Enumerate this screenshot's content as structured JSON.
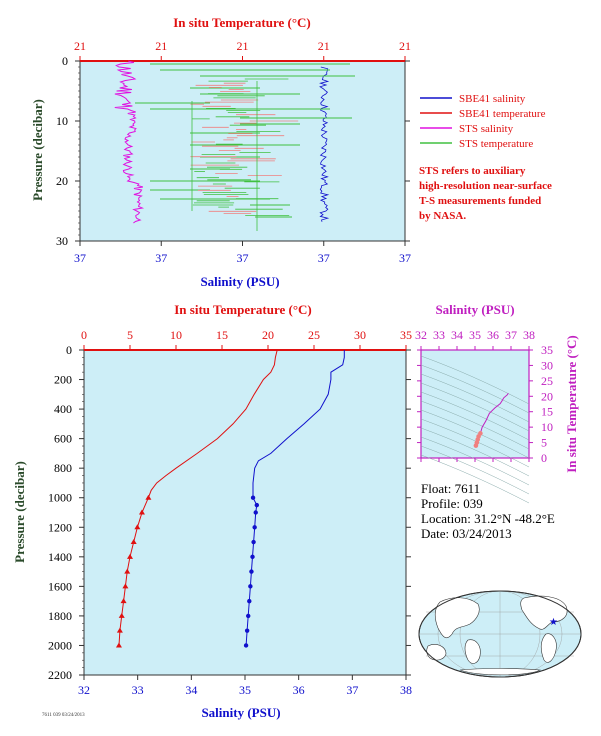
{
  "colors": {
    "panel_bg": "#cdeef7",
    "axis_dark": "#333333",
    "temp": "#e01010",
    "salinity": "#1010cc",
    "sts_salinity": "#e010e0",
    "sts_temperature": "#40c040",
    "sts_temp_fine": "#f08080",
    "ts_salinity": "#c020c0",
    "ylabel": "#2a4a2a"
  },
  "top_panel": {
    "top_axis_title": "In situ Temperature (°C)",
    "bottom_axis_title": "Salinity (PSU)",
    "y_axis_title": "Pressure (decibar)",
    "top_ticks": [
      "21",
      "21",
      "21",
      "21",
      "21"
    ],
    "bottom_ticks": [
      "37",
      "37",
      "37",
      "37",
      "37"
    ],
    "y_ticks": [
      "0",
      "10",
      "20",
      "30"
    ],
    "legend": [
      {
        "label": "SBE41 salinity",
        "color": "#1010cc"
      },
      {
        "label": "SBE41 temperature",
        "color": "#e01010"
      },
      {
        "label": "STS salinity",
        "color": "#e010e0"
      },
      {
        "label": "STS temperature",
        "color": "#40c040"
      }
    ],
    "note": [
      "STS refers to auxiliary",
      "high-resolution near-surface",
      "T-S measurements funded",
      "by NASA."
    ]
  },
  "main_panel": {
    "top_axis_title": "In situ Temperature (°C)",
    "bottom_axis_title": "Salinity (PSU)",
    "y_axis_title": "Pressure (decibar)",
    "top_ticks": [
      "0",
      "5",
      "10",
      "15",
      "20",
      "25",
      "30",
      "35"
    ],
    "bottom_ticks": [
      "32",
      "33",
      "34",
      "35",
      "36",
      "37",
      "38"
    ],
    "y_ticks": [
      "0",
      "200",
      "400",
      "600",
      "800",
      "1000",
      "1200",
      "1400",
      "1600",
      "1800",
      "2000",
      "2200"
    ]
  },
  "ts_panel": {
    "top_axis_title": "Salinity (PSU)",
    "right_axis_title": "In situ Temperature (°C)",
    "top_ticks": [
      "32",
      "33",
      "34",
      "35",
      "36",
      "37",
      "38"
    ],
    "right_ticks": [
      "0",
      "5",
      "10",
      "15",
      "20",
      "25",
      "30",
      "35"
    ]
  },
  "float_info": {
    "float": "Float:  7611",
    "profile": "Profile:  039",
    "location": "Location:  31.2°N  -48.2°E",
    "date": "Date:  03/24/2013"
  },
  "footer_code": "7611 039 03/24/2013",
  "chart_data": [
    {
      "type": "line",
      "name": "main_profile",
      "x_temperature_range": [
        0,
        35
      ],
      "x_salinity_range": [
        32,
        38
      ],
      "y_pressure_range": [
        0,
        2200
      ],
      "series": [
        {
          "name": "SBE41 temperature",
          "pressure": [
            0,
            50,
            100,
            150,
            200,
            300,
            400,
            500,
            600,
            700,
            800,
            850,
            900,
            950,
            1000,
            1100,
            1200,
            1300,
            1400,
            1500,
            1600,
            1700,
            1800,
            1900,
            2000
          ],
          "temperature": [
            21.0,
            20.8,
            20.7,
            20.3,
            19.5,
            18.5,
            17.6,
            16.2,
            14.5,
            12.3,
            10.0,
            8.9,
            7.9,
            7.3,
            7.0,
            6.3,
            5.8,
            5.4,
            5.0,
            4.7,
            4.5,
            4.3,
            4.1,
            3.9,
            3.8
          ]
        },
        {
          "name": "SBE41 salinity",
          "pressure": [
            0,
            50,
            100,
            150,
            200,
            300,
            400,
            500,
            600,
            700,
            750,
            800,
            900,
            1000,
            1050,
            1100,
            1200,
            1300,
            1400,
            1500,
            1600,
            1700,
            1800,
            1900,
            2000
          ],
          "salinity": [
            36.85,
            36.85,
            36.82,
            36.6,
            36.6,
            36.55,
            36.4,
            36.1,
            35.78,
            35.48,
            35.25,
            35.18,
            35.15,
            35.15,
            35.22,
            35.2,
            35.18,
            35.16,
            35.14,
            35.12,
            35.1,
            35.08,
            35.06,
            35.04,
            35.02
          ]
        }
      ]
    },
    {
      "type": "scatter",
      "name": "ts_diagram",
      "xlim": [
        32,
        38
      ],
      "ylim": [
        0,
        35
      ],
      "series": [
        {
          "name": "T-S curve",
          "salinity": [
            36.85,
            36.8,
            36.6,
            36.5,
            36.4,
            36.1,
            35.8,
            35.6,
            35.4,
            35.3,
            35.2,
            35.15,
            35.1,
            35.05
          ],
          "temperature": [
            21.0,
            20.5,
            19.5,
            18.5,
            17.6,
            16.2,
            14.5,
            12.0,
            10.0,
            8.0,
            7.0,
            6.0,
            5.0,
            4.0
          ]
        }
      ]
    }
  ]
}
